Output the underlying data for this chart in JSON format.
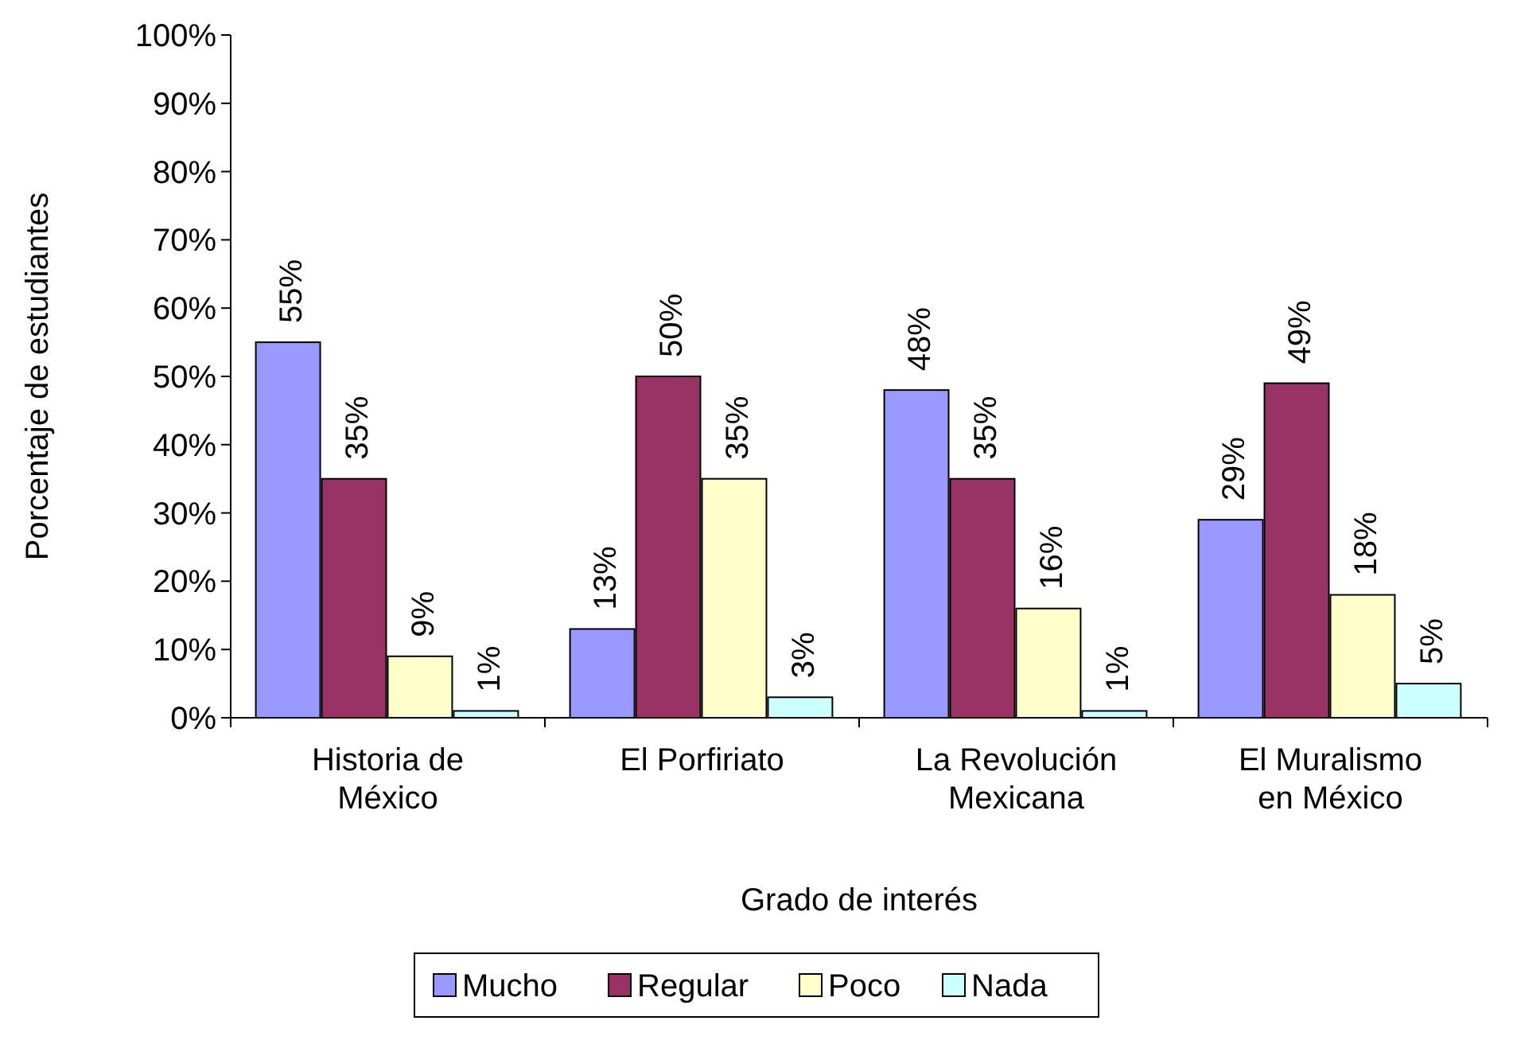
{
  "chart_data": {
    "type": "bar",
    "xlabel": "Grado de interés",
    "ylabel": "Porcentaje de estudiantes",
    "categories": [
      "Historia de México",
      "El Porfiriato",
      "La Revolución Mexicana",
      "El Muralismo en México"
    ],
    "series": [
      {
        "name": "Mucho",
        "color": "#9999ff",
        "values": [
          55,
          13,
          48,
          29
        ],
        "value_labels": [
          "55%",
          "13%",
          "48%",
          "29%"
        ]
      },
      {
        "name": "Regular",
        "color": "#993366",
        "values": [
          35,
          50,
          35,
          49
        ],
        "value_labels": [
          "35%",
          "50%",
          "35%",
          "49%"
        ]
      },
      {
        "name": "Poco",
        "color": "#ffffcc",
        "values": [
          9,
          35,
          16,
          18
        ],
        "value_labels": [
          "9%",
          "35%",
          "16%",
          "18%"
        ]
      },
      {
        "name": "Nada",
        "color": "#ccffff",
        "values": [
          1,
          3,
          1,
          5
        ],
        "value_labels": [
          "1%",
          "3%",
          "1%",
          "5%"
        ]
      }
    ],
    "ylim": [
      0,
      100
    ],
    "yticks": [
      {
        "value": 0,
        "label": "0%"
      },
      {
        "value": 10,
        "label": "10%"
      },
      {
        "value": 20,
        "label": "20%"
      },
      {
        "value": 30,
        "label": "30%"
      },
      {
        "value": 40,
        "label": "40%"
      },
      {
        "value": 50,
        "label": "50%"
      },
      {
        "value": 60,
        "label": "60%"
      },
      {
        "value": 70,
        "label": "70%"
      },
      {
        "value": 80,
        "label": "80%"
      },
      {
        "value": 90,
        "label": "90%"
      },
      {
        "value": 100,
        "label": "100%"
      }
    ],
    "grid": false,
    "legend": "bottom"
  }
}
